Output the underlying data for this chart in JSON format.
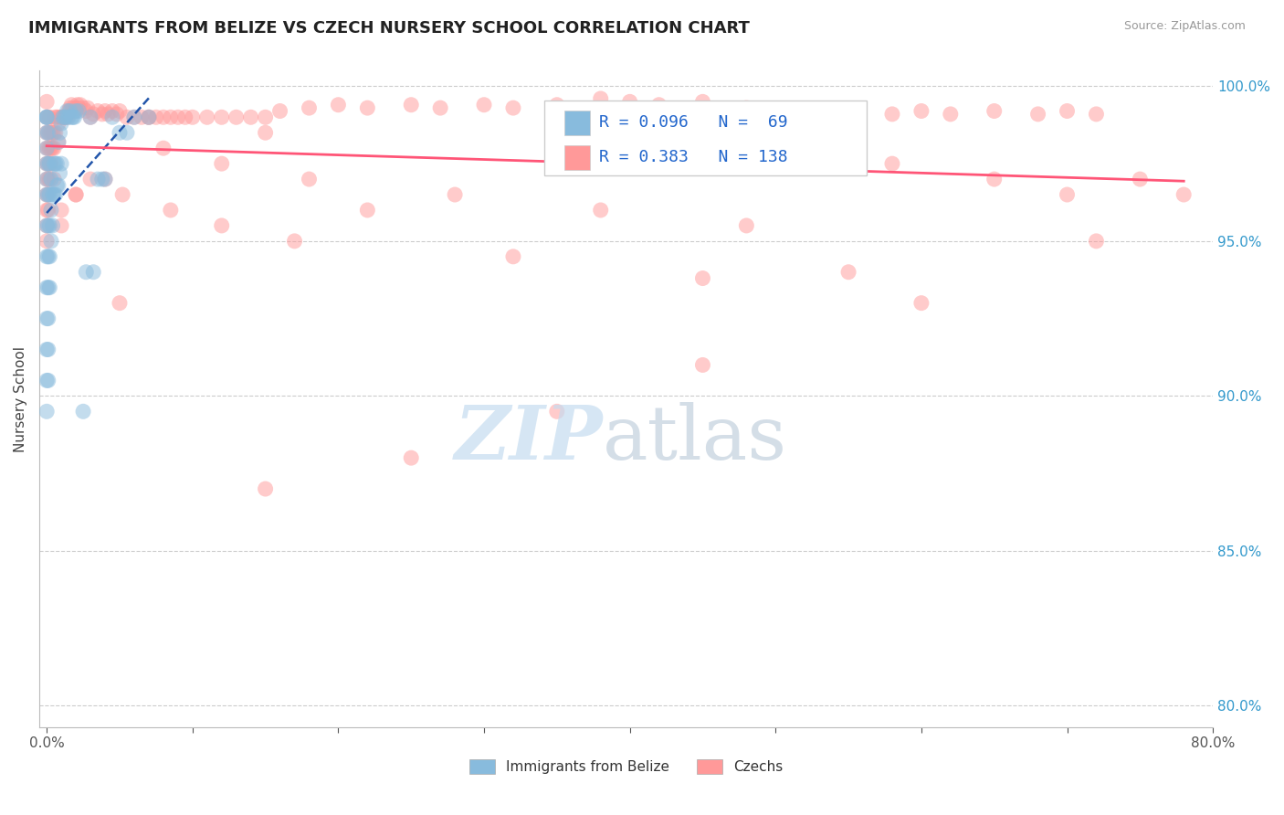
{
  "title": "IMMIGRANTS FROM BELIZE VS CZECH NURSERY SCHOOL CORRELATION CHART",
  "source": "Source: ZipAtlas.com",
  "ylabel_label": "Nursery School",
  "legend_label1": "Immigrants from Belize",
  "legend_label2": "Czechs",
  "R1": 0.096,
  "N1": 69,
  "R2": 0.383,
  "N2": 138,
  "color_blue": "#88BBDD",
  "color_pink": "#FF9999",
  "color_line_blue": "#2255AA",
  "color_line_pink": "#FF5577",
  "blue_points_x": [
    0.0,
    0.0,
    0.0,
    0.0,
    0.0,
    0.0,
    0.0,
    0.0,
    0.0,
    0.0,
    0.0,
    0.0,
    0.0,
    0.0,
    0.0,
    0.001,
    0.001,
    0.001,
    0.001,
    0.001,
    0.001,
    0.001,
    0.001,
    0.001,
    0.002,
    0.002,
    0.002,
    0.002,
    0.002,
    0.003,
    0.003,
    0.003,
    0.004,
    0.004,
    0.005,
    0.005,
    0.006,
    0.006,
    0.007,
    0.007,
    0.008,
    0.008,
    0.009,
    0.009,
    0.01,
    0.01,
    0.011,
    0.012,
    0.013,
    0.014,
    0.015,
    0.016,
    0.017,
    0.018,
    0.019,
    0.02,
    0.022,
    0.025,
    0.027,
    0.03,
    0.032,
    0.035,
    0.038,
    0.04,
    0.045,
    0.05,
    0.055,
    0.06,
    0.07
  ],
  "blue_points_y": [
    0.99,
    0.99,
    0.99,
    0.985,
    0.98,
    0.975,
    0.97,
    0.965,
    0.955,
    0.945,
    0.935,
    0.925,
    0.915,
    0.905,
    0.895,
    0.985,
    0.975,
    0.965,
    0.955,
    0.945,
    0.935,
    0.925,
    0.915,
    0.905,
    0.975,
    0.965,
    0.955,
    0.945,
    0.935,
    0.97,
    0.96,
    0.95,
    0.965,
    0.955,
    0.975,
    0.965,
    0.975,
    0.965,
    0.975,
    0.968,
    0.982,
    0.968,
    0.985,
    0.972,
    0.988,
    0.975,
    0.99,
    0.99,
    0.99,
    0.992,
    0.99,
    0.992,
    0.99,
    0.99,
    0.99,
    0.992,
    0.992,
    0.895,
    0.94,
    0.99,
    0.94,
    0.97,
    0.97,
    0.97,
    0.99,
    0.985,
    0.985,
    0.99,
    0.99
  ],
  "pink_points_x": [
    0.0,
    0.0,
    0.0,
    0.0,
    0.0,
    0.0,
    0.0,
    0.0,
    0.0,
    0.0,
    0.001,
    0.001,
    0.001,
    0.001,
    0.001,
    0.001,
    0.001,
    0.002,
    0.002,
    0.002,
    0.002,
    0.002,
    0.003,
    0.003,
    0.003,
    0.004,
    0.004,
    0.005,
    0.005,
    0.006,
    0.006,
    0.007,
    0.008,
    0.008,
    0.009,
    0.01,
    0.011,
    0.012,
    0.013,
    0.014,
    0.015,
    0.016,
    0.017,
    0.018,
    0.019,
    0.02,
    0.021,
    0.022,
    0.023,
    0.025,
    0.027,
    0.028,
    0.03,
    0.032,
    0.035,
    0.038,
    0.04,
    0.042,
    0.045,
    0.048,
    0.05,
    0.055,
    0.06,
    0.065,
    0.07,
    0.075,
    0.08,
    0.085,
    0.09,
    0.095,
    0.1,
    0.11,
    0.12,
    0.13,
    0.14,
    0.15,
    0.16,
    0.18,
    0.2,
    0.22,
    0.25,
    0.27,
    0.3,
    0.32,
    0.35,
    0.38,
    0.4,
    0.42,
    0.45,
    0.48,
    0.5,
    0.52,
    0.55,
    0.58,
    0.6,
    0.62,
    0.65,
    0.68,
    0.7,
    0.72,
    0.75,
    0.78,
    0.72,
    0.6,
    0.45,
    0.35,
    0.25,
    0.15,
    0.05,
    0.03,
    0.02,
    0.01,
    0.08,
    0.12,
    0.18,
    0.28,
    0.38,
    0.48,
    0.58,
    0.65,
    0.7,
    0.55,
    0.45,
    0.32,
    0.22,
    0.15,
    0.07,
    0.04,
    0.02,
    0.01,
    0.005,
    0.052,
    0.085,
    0.12,
    0.17,
    0.22,
    0.28,
    0.34
  ],
  "pink_points_y": [
    0.995,
    0.99,
    0.985,
    0.98,
    0.975,
    0.97,
    0.965,
    0.96,
    0.955,
    0.95,
    0.99,
    0.985,
    0.98,
    0.975,
    0.97,
    0.965,
    0.96,
    0.99,
    0.985,
    0.98,
    0.975,
    0.97,
    0.985,
    0.98,
    0.975,
    0.985,
    0.98,
    0.985,
    0.98,
    0.99,
    0.985,
    0.99,
    0.988,
    0.982,
    0.99,
    0.99,
    0.99,
    0.99,
    0.99,
    0.99,
    0.992,
    0.993,
    0.994,
    0.993,
    0.992,
    0.993,
    0.994,
    0.993,
    0.994,
    0.993,
    0.992,
    0.993,
    0.99,
    0.991,
    0.992,
    0.991,
    0.992,
    0.991,
    0.992,
    0.991,
    0.992,
    0.99,
    0.99,
    0.99,
    0.99,
    0.99,
    0.99,
    0.99,
    0.99,
    0.99,
    0.99,
    0.99,
    0.99,
    0.99,
    0.99,
    0.99,
    0.992,
    0.993,
    0.994,
    0.993,
    0.994,
    0.993,
    0.994,
    0.993,
    0.994,
    0.996,
    0.995,
    0.994,
    0.995,
    0.993,
    0.992,
    0.991,
    0.992,
    0.991,
    0.992,
    0.991,
    0.992,
    0.991,
    0.992,
    0.991,
    0.97,
    0.965,
    0.95,
    0.93,
    0.91,
    0.895,
    0.88,
    0.87,
    0.93,
    0.97,
    0.965,
    0.955,
    0.98,
    0.975,
    0.97,
    0.965,
    0.96,
    0.955,
    0.975,
    0.97,
    0.965,
    0.94,
    0.938,
    0.945,
    0.96,
    0.985,
    0.99,
    0.97,
    0.965,
    0.96,
    0.97,
    0.965,
    0.96,
    0.955,
    0.95
  ]
}
